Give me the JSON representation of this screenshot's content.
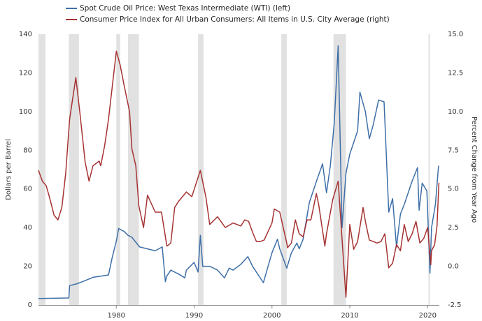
{
  "chart_data": {
    "type": "line",
    "xlim": [
      1970,
      2021.5
    ],
    "xticks": [
      1980,
      1990,
      2000,
      2010,
      2020
    ],
    "ylim": [
      0,
      140
    ],
    "yticks": [
      0,
      20,
      40,
      60,
      80,
      100,
      120,
      140
    ],
    "y2lim": [
      -2.5,
      15
    ],
    "y2ticks": [
      -2.5,
      {
        "value": 0,
        "label": "0.0"
      },
      2.5,
      {
        "value": 5,
        "label": "5.0"
      },
      7.5,
      {
        "value": 10,
        "label": "10.0"
      },
      12.5,
      {
        "value": 15,
        "label": "15.0"
      }
    ],
    "ylabel": "Dollars per Barrel",
    "y2label": "Percent Change from Year Ago",
    "grid": false,
    "recessions": [
      [
        1970.0,
        1970.9
      ],
      [
        1973.9,
        1975.2
      ],
      [
        1980.0,
        1980.5
      ],
      [
        1981.5,
        1982.9
      ],
      [
        1990.5,
        1991.2
      ],
      [
        2001.2,
        2001.9
      ],
      [
        2007.9,
        2009.5
      ],
      [
        2020.1,
        2020.3
      ]
    ],
    "series": [
      {
        "name": "Spot Crude Oil Price: West Texas Intermediate (WTI) (left)",
        "color": "#3e6fa8",
        "x": [
          1970,
          1973.9,
          1974.0,
          1975,
          1976,
          1977,
          1978,
          1979,
          1979.5,
          1980,
          1980.3,
          1981,
          1981.5,
          1982,
          1983,
          1984,
          1985,
          1985.9,
          1986.3,
          1986.5,
          1987,
          1988,
          1988.8,
          1989,
          1990,
          1990.5,
          1990.8,
          1991.1,
          1992,
          1993,
          1993.9,
          1994.5,
          1995,
          1996,
          1996.9,
          1997.5,
          1998,
          1998.9,
          1999.5,
          2000,
          2000.7,
          2001,
          2001.9,
          2002.5,
          2003.2,
          2003.5,
          2004,
          2004.8,
          2005.8,
          2006.5,
          2007,
          2007.5,
          2008,
          2008.5,
          2009,
          2009.5,
          2010,
          2011,
          2011.3,
          2012,
          2012.5,
          2013,
          2013.7,
          2014.4,
          2015,
          2015.5,
          2016,
          2016.5,
          2017,
          2018,
          2018.7,
          2018.9,
          2019.3,
          2019.9,
          2020.3,
          2020.5,
          2021,
          2021.4
        ],
        "values": [
          3.35,
          3.6,
          10,
          11,
          12.6,
          14.3,
          14.9,
          15.5,
          25,
          33,
          39.5,
          38,
          36,
          35,
          30,
          29,
          28,
          30,
          12,
          15,
          18,
          16,
          14,
          18,
          22,
          17,
          36,
          20,
          20,
          18,
          14,
          19,
          18,
          21,
          25,
          20,
          17,
          11.5,
          20,
          27,
          34,
          29,
          19,
          27,
          32,
          29,
          34,
          53,
          65,
          73,
          58,
          72,
          94,
          134,
          40,
          68,
          78,
          90,
          110,
          100,
          86,
          93,
          106,
          105,
          48,
          55,
          30,
          47,
          52,
          64,
          71,
          49,
          63,
          59,
          16.5,
          40,
          52,
          72
        ]
      },
      {
        "name": "Consumer Price Index for All Urban Consumers: All Items in U.S. City Average (right)",
        "color": "#a63232",
        "axis": "y2",
        "x": [
          1970,
          1970.5,
          1971,
          1971.5,
          1972,
          1972.5,
          1973,
          1973.5,
          1974,
          1974.8,
          1975.3,
          1976,
          1976.5,
          1977,
          1977.8,
          1978,
          1978.5,
          1979,
          1980,
          1980.5,
          1981,
          1981.7,
          1982,
          1982.5,
          1982.9,
          1983.5,
          1984,
          1985,
          1985.8,
          1986.5,
          1987,
          1987.5,
          1988,
          1989,
          1989.7,
          1990.8,
          1991.5,
          1992,
          1993,
          1994,
          1995,
          1996,
          1996.5,
          1997,
          1997.5,
          1998,
          1998.5,
          1999,
          2000,
          2000.3,
          2001,
          2001.9,
          2002,
          2002.5,
          2003,
          2003.5,
          2004,
          2004.5,
          2005,
          2005.7,
          2006,
          2006.8,
          2007,
          2007.8,
          2008.5,
          2009.5,
          2010,
          2010.5,
          2011,
          2011.7,
          2012,
          2012.5,
          2013,
          2013.5,
          2014,
          2014.5,
          2015,
          2015.5,
          2016,
          2016.5,
          2017,
          2017.5,
          2018,
          2018.5,
          2019,
          2019.5,
          2020,
          2020.4,
          2020.5,
          2020.9,
          2021.2,
          2021.45
        ],
        "values": [
          6.2,
          5.5,
          5.2,
          4.3,
          3.3,
          3.0,
          3.8,
          6,
          9.5,
          12.2,
          10,
          6.7,
          5.5,
          6.5,
          6.8,
          6.5,
          7.8,
          9.5,
          13.9,
          13,
          11.7,
          10,
          7.6,
          6.5,
          3.9,
          2.5,
          4.6,
          3.5,
          3.5,
          1.3,
          1.5,
          3.8,
          4.2,
          4.8,
          4.5,
          6.2,
          4.5,
          2.7,
          3.2,
          2.5,
          2.8,
          2.6,
          3.0,
          2.9,
          2.2,
          1.6,
          1.6,
          1.7,
          2.8,
          3.7,
          3.5,
          1.5,
          1.2,
          1.5,
          3.0,
          2.1,
          1.9,
          3.0,
          3.0,
          4.7,
          4.0,
          1.3,
          2.1,
          4.3,
          5.5,
          -2.0,
          2.7,
          1.1,
          1.6,
          3.8,
          2.9,
          1.7,
          1.6,
          1.5,
          1.6,
          2.1,
          -0.1,
          0.2,
          1.4,
          1.0,
          2.7,
          1.6,
          2.1,
          2.9,
          1.5,
          1.8,
          2.5,
          0.1,
          1.0,
          1.4,
          2.6,
          5.4
        ]
      }
    ]
  }
}
